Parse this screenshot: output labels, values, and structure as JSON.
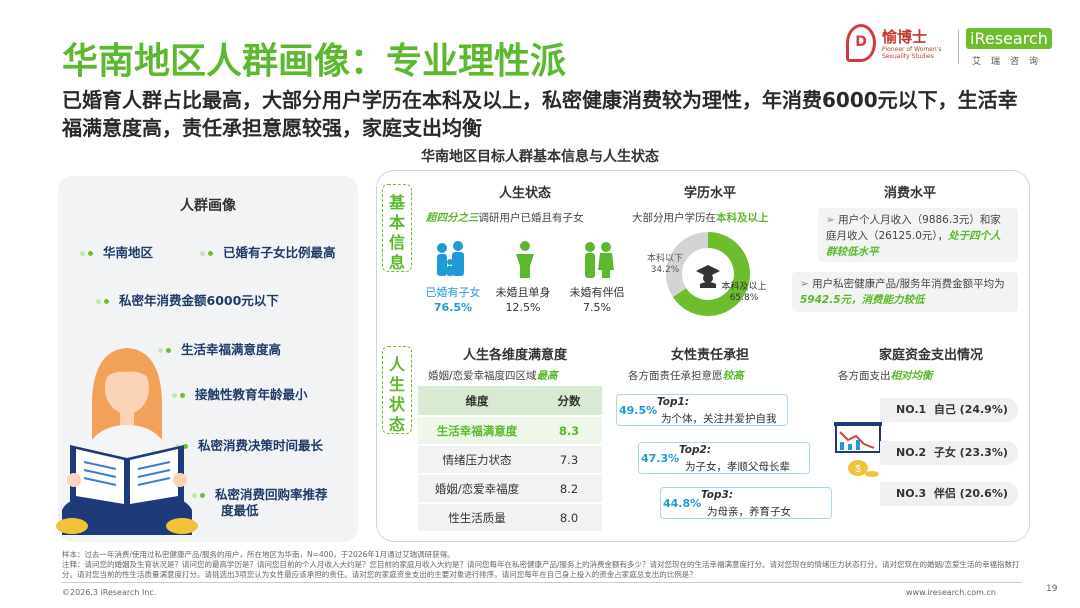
{
  "header": {
    "title": "华南地区人群画像：专业理性派",
    "subtitle": "已婚育人群占比最高，大部分用户学历在本科及以上，私密健康消费较为理性，年消费6000元以下，生活幸福满意度高，责任承担意愿较强，家庭支出均衡",
    "chart_title": "华南地区目标人群基本信息与人生状态"
  },
  "logo": {
    "yb_mark": "D",
    "yb_name": "愉博士",
    "yb_tag": "Pioneer of Women's Sexuality Studies",
    "ir_name": "iResearch",
    "ir_cn": "艾瑞咨询"
  },
  "left_panel": {
    "title": "人群画像",
    "tags": [
      "华南地区",
      "已婚有子女比例最高",
      "私密年消费金额6000元以下",
      "生活幸福满意度高",
      "接触性教育年龄最小",
      "私密消费决策时间最长",
      "私密消费回购率推荐",
      "度最低"
    ]
  },
  "sections": {
    "basic_label": "基本信息",
    "life_label": "人生状态"
  },
  "life_status": {
    "header": "人生状态",
    "note_em": "超四分之三",
    "note_rest": "调研用户已婚且有子女",
    "items": [
      {
        "label": "已婚有子女",
        "value": "76.5%"
      },
      {
        "label": "未婚且单身",
        "value": "12.5%"
      },
      {
        "label": "未婚有伴侣",
        "value": "7.5%"
      }
    ],
    "colors": [
      "#1e9bd7",
      "#5cb82e",
      "#5cb82e"
    ]
  },
  "education": {
    "header": "学历水平",
    "note_pre": "大部分用户学历在",
    "note_em": "本科及以上",
    "slices": [
      {
        "label": "本科以下",
        "value": "34.2%",
        "pct": 34.2,
        "color": "#d4d4d4"
      },
      {
        "label": "本科及以上",
        "value": "65.8%",
        "pct": 65.8,
        "color": "#6ebd2f"
      }
    ]
  },
  "consumption": {
    "header": "消费水平",
    "callout1_pre": "用户个人月收入（9886.3元）和家庭月收入（26125.0元），",
    "callout1_em": "处于四个人群较低水平",
    "callout2_pre": "用户私密健康产品/服务年消费金额平均为",
    "callout2_em": "5942.5元，消费能力较低"
  },
  "satisfaction": {
    "header": "人生各维度满意度",
    "note_pre": "婚姻/恋爱幸福度四区域",
    "note_em": "最高",
    "col_dim": "维度",
    "col_score": "分数",
    "rows": [
      {
        "dim": "生活幸福满意度",
        "score": "8.3"
      },
      {
        "dim": "情绪压力状态",
        "score": "7.3"
      },
      {
        "dim": "婚姻/恋爱幸福度",
        "score": "8.2"
      },
      {
        "dim": "性生活质量",
        "score": "8.0"
      }
    ]
  },
  "responsibility": {
    "header": "女性责任承担",
    "note_pre": "各方面责任承担意愿",
    "note_em": "较高",
    "items": [
      {
        "pct": "49.5%",
        "top": "Top1:",
        "desc": "为个体，关注并爱护自我"
      },
      {
        "pct": "47.3%",
        "top": "Top2:",
        "desc": "为子女，孝顺父母长辈"
      },
      {
        "pct": "44.8%",
        "top": "Top3:",
        "desc": "为母亲，养育子女"
      }
    ]
  },
  "family_spending": {
    "header": "家庭资金支出情况",
    "note_pre": "各方面支出",
    "note_em": "相对均衡",
    "ranks": [
      {
        "rank": "NO.1",
        "who": "自己",
        "value": "(24.9%)"
      },
      {
        "rank": "NO.2",
        "who": "子女",
        "value": "(23.3%)"
      },
      {
        "rank": "NO.3",
        "who": "伴侣",
        "value": "(20.6%)"
      }
    ]
  },
  "footer": {
    "sample": "样本：过去一年消费/使用过私密健康产品/服务的用户，所在地区为华南，N=400，于2026年1月通过艾瑞调研获得。",
    "note": "注释：请问您的婚姻及生育状况是？请问您的最高学历是？请问您目前的个人月收入大约是？您目前的家庭月收入大约是？请问您每年在私密健康产品/服务上的消费金额有多少？请对您现在的生活幸福满意度打分。请对您现在的情绪压力状态打分。请对您现在的婚姻/恋爱生活的幸福指数打分。请对您当前的性生活质量满意度打分。请挑选出3项您认为女性最应该承担的责任。请对您的家庭资金支出的主要对象进行排序。请问您每年在自己身上投入的资金占家庭总支出的比例是？",
    "copyright": "©2026.3 iResearch Inc.",
    "website": "www.iresearch.com.cn",
    "page": "19"
  }
}
